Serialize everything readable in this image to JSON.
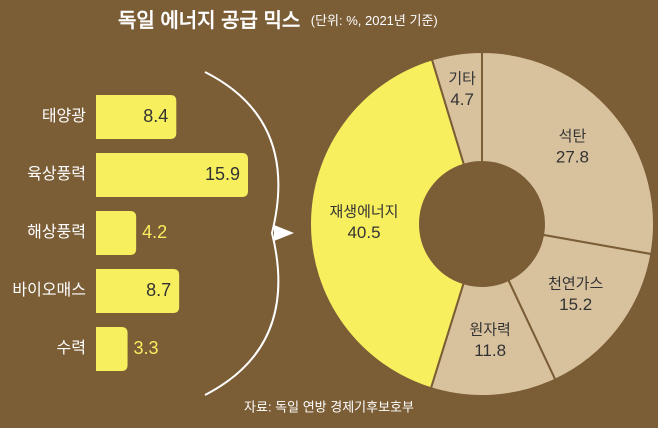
{
  "chart_data": [
    {
      "type": "bar",
      "title": "독일 에너지 공급 믹스",
      "subtitle": "(단위: %, 2021년 기준)",
      "note": "자료: 독일 연방 경제기후보호부",
      "categories": [
        "태양광",
        "육상풍력",
        "해상풍력",
        "바이오매스",
        "수력"
      ],
      "values": [
        8.4,
        15.9,
        4.2,
        8.7,
        3.3
      ],
      "color": "#f8ef5f"
    },
    {
      "type": "donut",
      "categories": [
        "석탄",
        "천연가스",
        "원자력",
        "재생에너지",
        "기타"
      ],
      "values": [
        27.8,
        15.2,
        11.8,
        40.5,
        4.7
      ],
      "colors": [
        "#d8c29e",
        "#d8c29e",
        "#d8c29e",
        "#f8ef5f",
        "#d8c29e"
      ]
    }
  ]
}
